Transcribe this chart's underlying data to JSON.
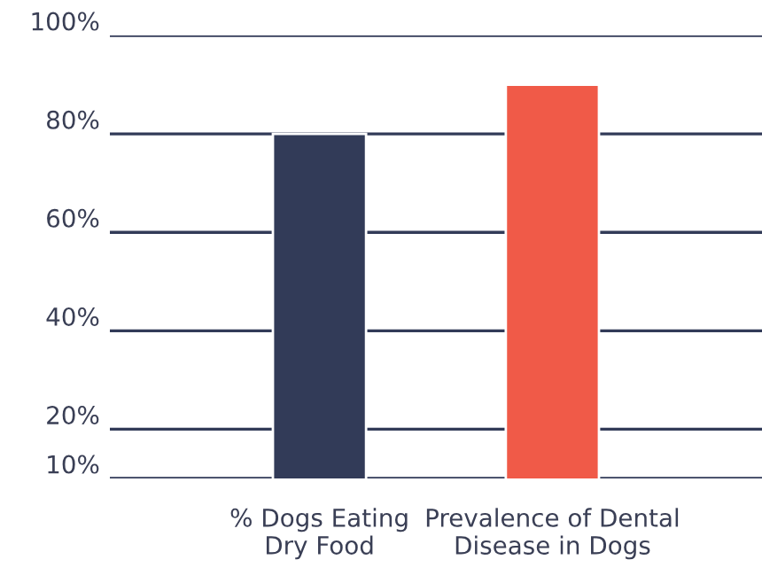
{
  "chart_data": {
    "type": "bar",
    "categories": [
      "% Dogs Eating\nDry Food",
      "Prevalence of Dental\nDisease in Dogs"
    ],
    "values": [
      80,
      90
    ],
    "colors": [
      "#323b58",
      "#f05a48"
    ],
    "ylim": [
      10,
      100
    ],
    "yticks": [
      {
        "value": 10,
        "label": "10%"
      },
      {
        "value": 20,
        "label": "20%"
      },
      {
        "value": 40,
        "label": "40%"
      },
      {
        "value": 60,
        "label": "60%"
      },
      {
        "value": 80,
        "label": "80%"
      },
      {
        "value": 100,
        "label": "100%"
      }
    ],
    "grid": "y",
    "legend": false
  }
}
